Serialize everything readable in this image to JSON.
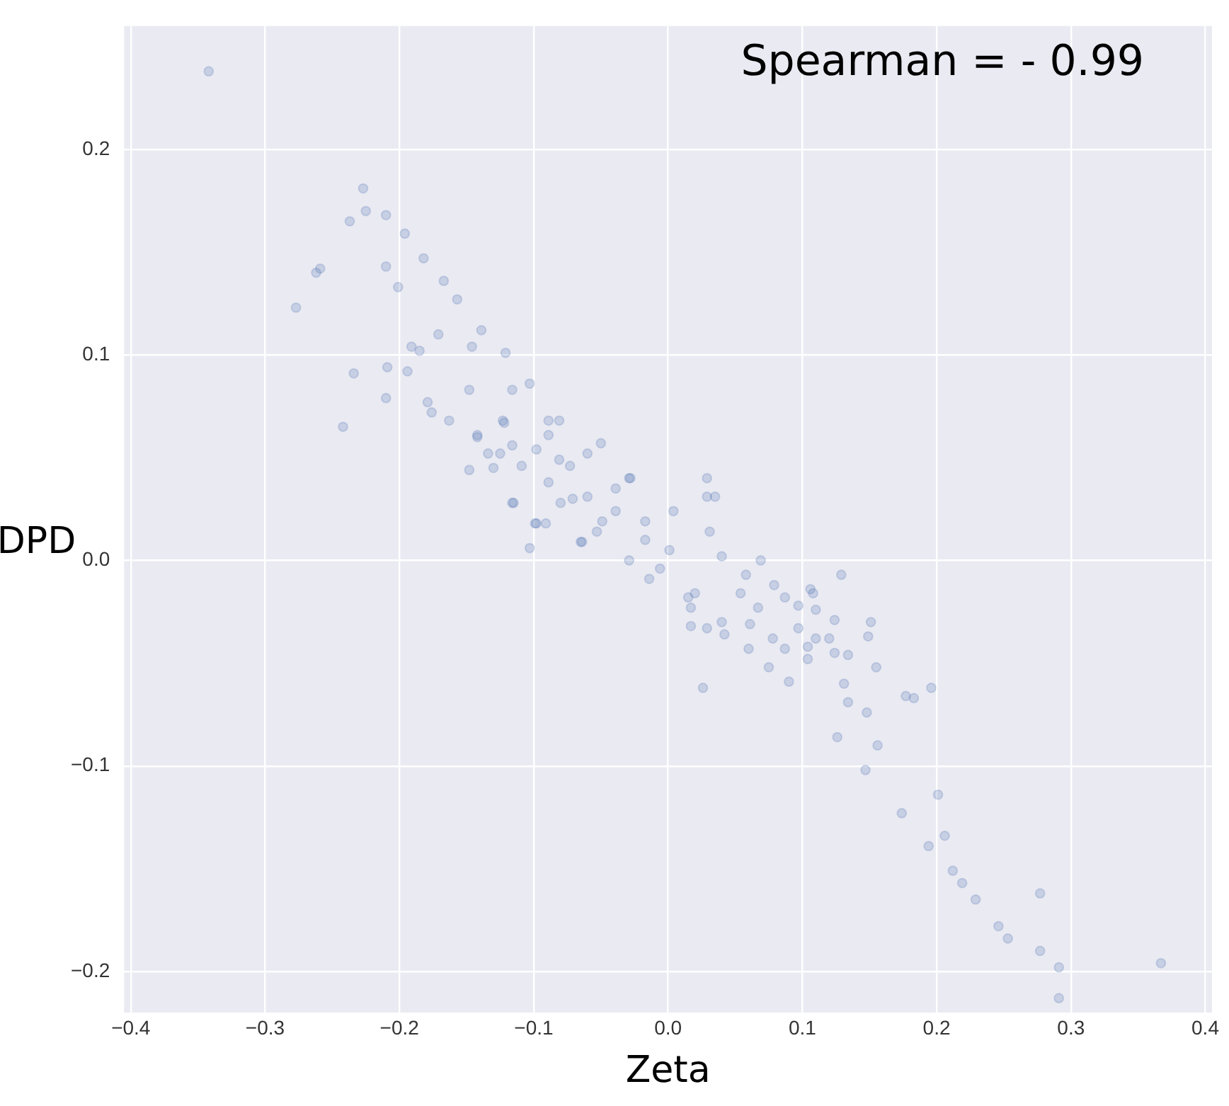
{
  "chart_data": {
    "type": "scatter",
    "xlabel": "Zeta",
    "ylabel": "DPD",
    "annotations": [
      "Spearman = - 0.99"
    ],
    "xlim": [
      -0.405,
      0.405
    ],
    "ylim": [
      -0.22,
      0.26
    ],
    "xticks": [
      {
        "value": -0.4,
        "label": "−0.4"
      },
      {
        "value": -0.3,
        "label": "−0.3"
      },
      {
        "value": -0.2,
        "label": "−0.2"
      },
      {
        "value": -0.1,
        "label": "−0.1"
      },
      {
        "value": 0,
        "label": "0.0"
      },
      0.1,
      0.2,
      0.3,
      0.4
    ],
    "yticks": [
      {
        "value": -0.2,
        "label": "−0.2"
      },
      {
        "value": -0.1,
        "label": "−0.1"
      },
      {
        "value": 0,
        "label": "0.0"
      },
      0.1,
      0.2
    ],
    "grid": true,
    "marker": "circle",
    "series": [
      {
        "color": "#4c72b0",
        "x": [
          -0.342,
          -0.227,
          -0.237,
          -0.262,
          -0.259,
          -0.277,
          -0.21,
          -0.201,
          -0.234,
          -0.242,
          -0.21,
          -0.209,
          -0.194,
          -0.191,
          -0.185,
          -0.179,
          -0.176,
          -0.163,
          -0.171,
          -0.148,
          -0.148,
          -0.142,
          -0.134,
          -0.125,
          -0.13,
          -0.116,
          -0.116,
          -0.146,
          -0.116,
          -0.122,
          -0.109,
          -0.098,
          -0.103,
          -0.099,
          -0.091,
          -0.089,
          -0.08,
          -0.065,
          -0.049,
          -0.05,
          -0.06,
          -0.029,
          -0.073,
          -0.089,
          -0.123,
          -0.142,
          -0.115,
          -0.098,
          -0.089,
          -0.081,
          -0.071,
          -0.064,
          -0.053,
          -0.039,
          -0.028,
          -0.029,
          -0.017,
          -0.014,
          -0.006,
          0.004,
          0.029,
          0.029,
          0.035,
          0.031,
          0.015,
          0.017,
          0.017,
          0.026,
          0.04,
          0.058,
          0.069,
          0.054,
          0.067,
          0.079,
          0.087,
          0.106,
          0.108,
          0.11,
          0.097,
          0.061,
          0.078,
          0.097,
          0.11,
          0.104,
          0.124,
          0.129,
          0.151,
          0.149,
          0.12,
          0.124,
          0.134,
          0.155,
          0.131,
          0.134,
          0.148,
          0.177,
          0.183,
          0.196,
          0.104,
          0.087,
          0.042,
          0.029,
          0.201,
          0.206,
          0.277,
          0.246,
          0.253,
          0.277,
          0.291,
          0.291,
          0.367,
          0.156,
          -0.225,
          -0.21,
          -0.196,
          -0.182,
          -0.167,
          -0.157,
          -0.139,
          -0.121,
          -0.103,
          -0.081,
          -0.06,
          -0.039,
          -0.017,
          0.001,
          0.02,
          0.04,
          0.06,
          0.075,
          0.09,
          0.126,
          0.147,
          0.174,
          0.194,
          0.212,
          0.219,
          0.229
        ],
        "values": [
          0.238,
          0.181,
          0.165,
          0.14,
          0.142,
          0.123,
          0.143,
          0.133,
          0.091,
          0.065,
          0.079,
          0.094,
          0.092,
          0.104,
          0.102,
          0.077,
          0.072,
          0.068,
          0.11,
          0.083,
          0.044,
          0.06,
          0.052,
          0.052,
          0.045,
          0.056,
          0.028,
          0.104,
          0.083,
          0.067,
          0.046,
          0.054,
          0.006,
          0.018,
          0.018,
          0.038,
          0.028,
          0.009,
          0.019,
          0.057,
          0.031,
          0.04,
          0.046,
          0.068,
          0.068,
          0.061,
          0.028,
          0.018,
          0.061,
          0.049,
          0.03,
          0.009,
          0.014,
          0.024,
          0.04,
          0.0,
          0.01,
          -0.009,
          -0.004,
          0.024,
          0.04,
          0.031,
          0.031,
          0.014,
          -0.018,
          -0.023,
          -0.032,
          -0.062,
          0.002,
          -0.007,
          0.0,
          -0.016,
          -0.023,
          -0.012,
          -0.018,
          -0.014,
          -0.016,
          -0.024,
          -0.022,
          -0.031,
          -0.038,
          -0.033,
          -0.038,
          -0.042,
          -0.029,
          -0.007,
          -0.03,
          -0.037,
          -0.038,
          -0.045,
          -0.046,
          -0.052,
          -0.06,
          -0.069,
          -0.074,
          -0.066,
          -0.067,
          -0.062,
          -0.048,
          -0.043,
          -0.036,
          -0.033,
          -0.114,
          -0.134,
          -0.162,
          -0.178,
          -0.184,
          -0.19,
          -0.198,
          -0.213,
          -0.196,
          -0.09,
          0.17,
          0.168,
          0.159,
          0.147,
          0.136,
          0.127,
          0.112,
          0.101,
          0.086,
          0.068,
          0.052,
          0.035,
          0.019,
          0.005,
          -0.016,
          -0.03,
          -0.043,
          -0.052,
          -0.059,
          -0.086,
          -0.102,
          -0.123,
          -0.139,
          -0.151,
          -0.157,
          -0.165
        ]
      }
    ]
  }
}
